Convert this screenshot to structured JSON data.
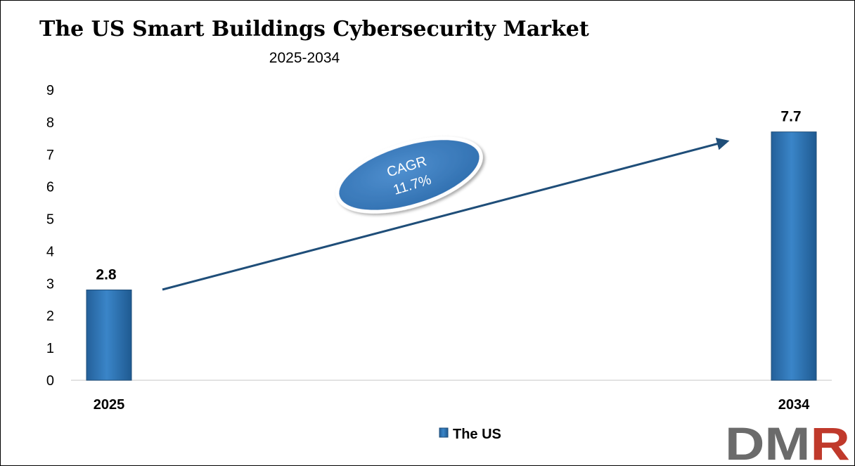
{
  "chart_data": {
    "type": "bar",
    "title": "The US Smart Buildings Cybersecurity Market",
    "subtitle": "2025-2034",
    "categories": [
      "2025",
      "2034"
    ],
    "series": [
      {
        "name": "The US",
        "values": [
          2.8,
          7.7
        ],
        "data_labels": [
          "2.8",
          "7.7"
        ]
      }
    ],
    "ylim": [
      0,
      9
    ],
    "yticks": [
      0,
      1,
      2,
      3,
      4,
      5,
      6,
      7,
      8,
      9
    ],
    "grid": false,
    "legend_position": "bottom-center",
    "annotation": {
      "line1": "CAGR",
      "line2": "11.7%"
    }
  },
  "colors": {
    "bar": "#2e75b6",
    "bar_edge": "#1f4e79",
    "arrow": "#1f4e79",
    "ellipse_fill": "#3e7dc0",
    "logo_gray": "#6b6b6b",
    "logo_red": "#c0392b"
  },
  "logo": {
    "text": "DMR"
  }
}
